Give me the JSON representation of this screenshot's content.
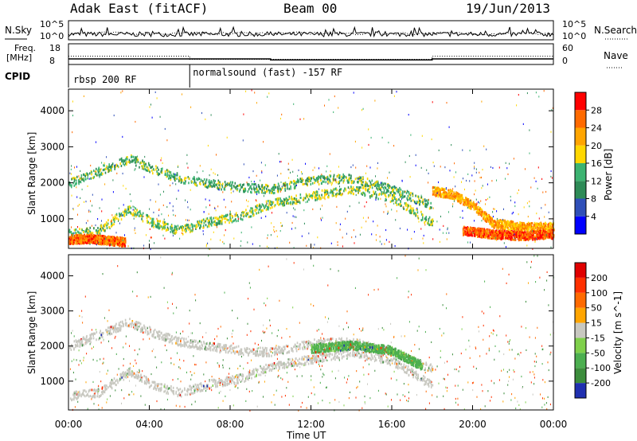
{
  "header": {
    "radar_title": "Adak East (fitACF)",
    "beam": "Beam 00",
    "date": "19/Jun/2013"
  },
  "panel_labels": {
    "nsky": "N.Sky",
    "nsearch": "N.Search",
    "freq_line1": "Freq.",
    "freq_line2": "[MHz]",
    "nave": "Nave",
    "cpid": "CPID"
  },
  "noise_panel": {
    "left_ticks": [
      "10^5",
      "10^0"
    ],
    "right_ticks": [
      "10^5",
      "10^0"
    ]
  },
  "freq_panel": {
    "left_ticks": [
      "18",
      "8"
    ],
    "right_ticks": [
      "60",
      "0"
    ],
    "freq_mhz": [
      [
        0,
        10.7
      ],
      [
        10,
        10.7
      ],
      [
        10,
        10.2
      ],
      [
        18,
        10.2
      ],
      [
        18,
        10.7
      ],
      [
        24,
        10.7
      ]
    ],
    "nave": [
      [
        0,
        24
      ],
      [
        6,
        24
      ],
      [
        6,
        15
      ],
      [
        18,
        15
      ],
      [
        18,
        24
      ],
      [
        24,
        24
      ]
    ]
  },
  "cpid_panel": {
    "segments": [
      {
        "start_hour": 0,
        "label": "rbsp 200 RF"
      },
      {
        "start_hour": 6,
        "label": "normalsound (fast) -157 RF"
      }
    ]
  },
  "chart_data": [
    {
      "type": "heatmap",
      "title": "Power",
      "ylabel": "Slant Range [km]",
      "xlabel": "Time UT",
      "xlim": [
        0,
        24
      ],
      "ylim": [
        180,
        4600
      ],
      "x_tick_labels": [
        "00:00",
        "04:00",
        "08:00",
        "12:00",
        "16:00",
        "20:00",
        "00:00"
      ],
      "y_ticks": [
        1000,
        2000,
        3000,
        4000
      ],
      "colorbar": {
        "label": "Power [dB]",
        "ticks": [
          "4",
          "8",
          "12",
          "16",
          "20",
          "24",
          "28"
        ],
        "colors": [
          "#0000ff",
          "#2f4fb8",
          "#2e8b57",
          "#3cb371",
          "#ffd700",
          "#ffa500",
          "#ff6a00",
          "#ff0000"
        ]
      },
      "echo_bands": [
        {
          "name": "main band",
          "points": [
            [
              0.0,
              2000
            ],
            [
              1.5,
              2350
            ],
            [
              3.0,
              2700
            ],
            [
              4.2,
              2400
            ],
            [
              5.5,
              2150
            ],
            [
              7,
              2000
            ],
            [
              8.5,
              1900
            ],
            [
              10,
              1850
            ],
            [
              12,
              2100
            ],
            [
              14,
              2150
            ],
            [
              16,
              1850
            ],
            [
              17.3,
              1550
            ],
            [
              18,
              1400
            ]
          ],
          "power_db": 13
        },
        {
          "name": "lower band",
          "points": [
            [
              0.0,
              600
            ],
            [
              1.5,
              700
            ],
            [
              3.0,
              1300
            ],
            [
              4.2,
              900
            ],
            [
              5.5,
              700
            ],
            [
              7,
              950
            ],
            [
              8.5,
              1100
            ],
            [
              10,
              1450
            ],
            [
              12,
              1650
            ],
            [
              14,
              1850
            ],
            [
              16,
              1600
            ],
            [
              17.3,
              1150
            ],
            [
              18,
              900
            ]
          ],
          "power_db": 15
        },
        {
          "name": "post-18UT band",
          "points": [
            [
              18,
              1800
            ],
            [
              19,
              1700
            ],
            [
              20,
              1400
            ],
            [
              21,
              900
            ],
            [
              22.5,
              800
            ],
            [
              24,
              800
            ]
          ],
          "power_db": 22
        },
        {
          "name": "near range",
          "points": [
            [
              0,
              450
            ],
            [
              1,
              480
            ],
            [
              2,
              420
            ],
            [
              2.8,
              380
            ]
          ],
          "power_db": 26
        },
        {
          "name": "near range late",
          "points": [
            [
              19.5,
              700
            ],
            [
              21,
              600
            ],
            [
              22.5,
              550
            ],
            [
              24,
              600
            ]
          ],
          "power_db": 27
        }
      ]
    },
    {
      "type": "heatmap",
      "title": "Velocity",
      "ylabel": "Slant Range [km]",
      "xlabel": "Time UT",
      "xlim": [
        0,
        24
      ],
      "ylim": [
        180,
        4600
      ],
      "x_tick_labels": [
        "00:00",
        "04:00",
        "08:00",
        "12:00",
        "16:00",
        "20:00",
        "00:00"
      ],
      "y_ticks": [
        1000,
        2000,
        3000,
        4000
      ],
      "colorbar": {
        "label": "Velocity [m s^-1]",
        "ticks": [
          "200",
          "100",
          "50",
          "15",
          "-15",
          "-50",
          "-100",
          "-200"
        ],
        "colors": [
          "#2030b0",
          "#3c8d3c",
          "#4caf50",
          "#7fd04b",
          "#c8c8c0",
          "#ffa500",
          "#ff6a00",
          "#ff3000",
          "#e00000"
        ]
      },
      "echo_bands": [
        {
          "name": "main band",
          "points": [
            [
              0.0,
              2000
            ],
            [
              1.5,
              2350
            ],
            [
              3.0,
              2700
            ],
            [
              4.2,
              2400
            ],
            [
              5.5,
              2150
            ],
            [
              7,
              2000
            ],
            [
              8.5,
              1900
            ],
            [
              10,
              1850
            ],
            [
              12,
              2100
            ],
            [
              14,
              2150
            ],
            [
              16,
              1850
            ],
            [
              17.3,
              1550
            ],
            [
              18,
              1400
            ]
          ],
          "velocity_ms": 0
        },
        {
          "name": "lower band",
          "points": [
            [
              0.0,
              600
            ],
            [
              1.5,
              700
            ],
            [
              3.0,
              1300
            ],
            [
              4.2,
              900
            ],
            [
              5.5,
              700
            ],
            [
              7,
              950
            ],
            [
              8.5,
              1100
            ],
            [
              10,
              1450
            ],
            [
              12,
              1650
            ],
            [
              14,
              1850
            ],
            [
              16,
              1600
            ],
            [
              17.3,
              1150
            ],
            [
              18,
              900
            ]
          ],
          "velocity_ms": 0
        },
        {
          "name": "green patch",
          "points": [
            [
              12,
              1950
            ],
            [
              14,
              2050
            ],
            [
              16,
              1900
            ],
            [
              17.5,
              1450
            ]
          ],
          "velocity_ms": 60
        }
      ]
    }
  ]
}
